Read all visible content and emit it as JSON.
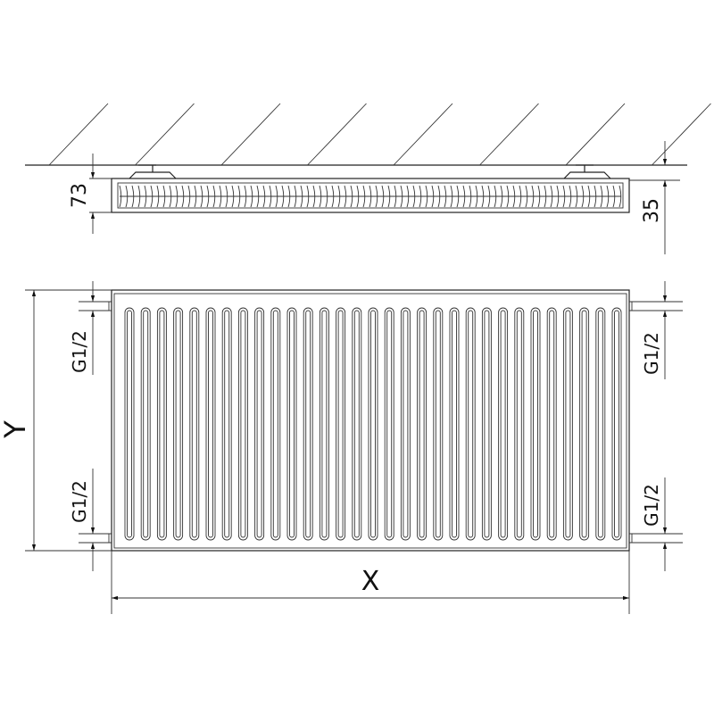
{
  "dimensions": {
    "top_depth": "73",
    "wall_gap": "35",
    "connection_top_left": "G1/2",
    "connection_bottom_left": "G1/2",
    "connection_top_right": "G1/2",
    "connection_bottom_right": "G1/2",
    "height": "Y",
    "width": "X"
  },
  "colors": {
    "line": "#222222",
    "background": "#ffffff"
  }
}
